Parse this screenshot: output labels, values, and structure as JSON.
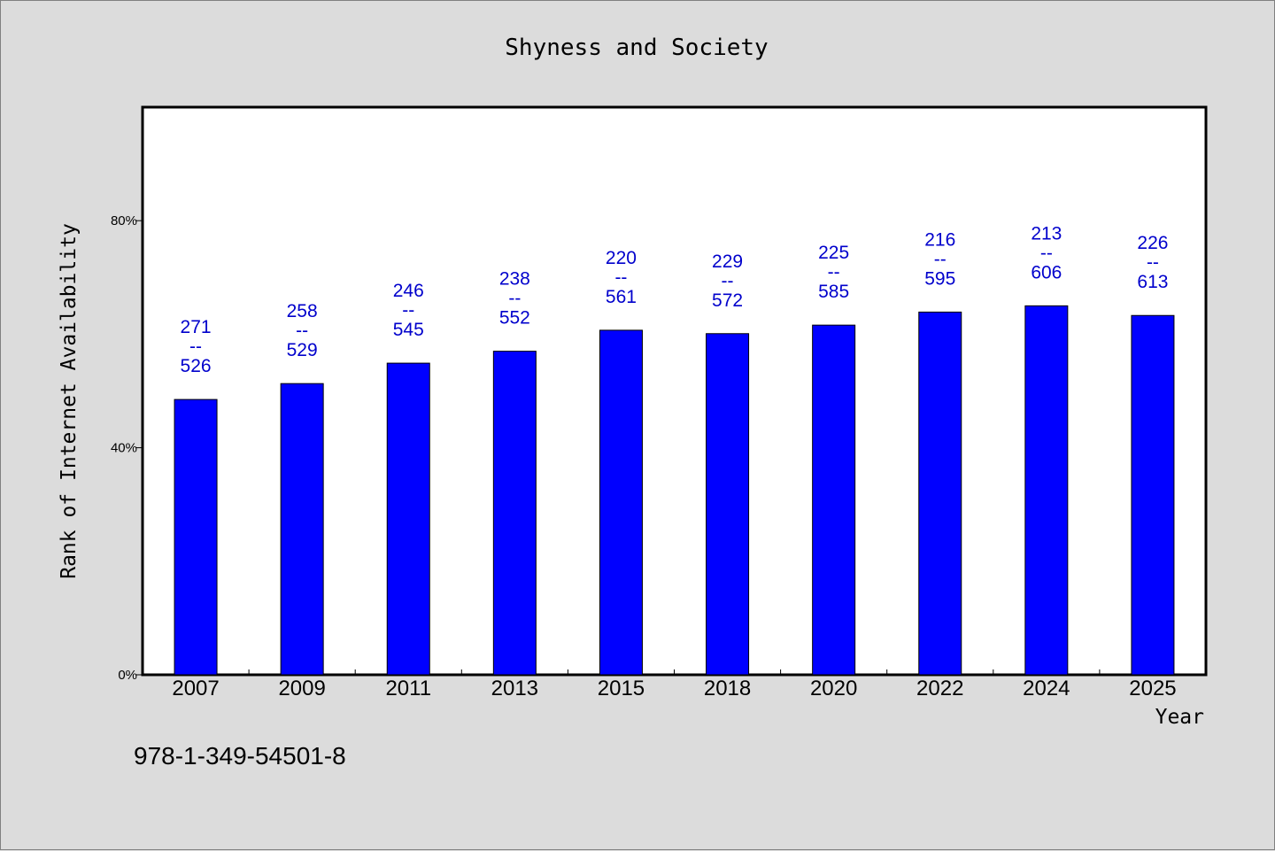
{
  "chart_data": {
    "type": "bar",
    "title": "Shyness and Society",
    "xlabel": "Year",
    "ylabel": "Rank of Internet Availability",
    "categories": [
      "2007",
      "2009",
      "2011",
      "2013",
      "2015",
      "2018",
      "2020",
      "2022",
      "2024",
      "2025"
    ],
    "values": [
      48.5,
      51.3,
      54.9,
      57.0,
      60.7,
      60.1,
      61.6,
      63.9,
      65.0,
      63.3
    ],
    "value_unit": "%",
    "ylim": [
      0,
      100
    ],
    "yticks": [
      {
        "value": 0,
        "label": "0%"
      },
      {
        "value": 40,
        "label": "40%"
      },
      {
        "value": 80,
        "label": "80%"
      }
    ],
    "data_labels": [
      {
        "top": "271",
        "sep": "--",
        "bottom": "526"
      },
      {
        "top": "258",
        "sep": "--",
        "bottom": "529"
      },
      {
        "top": "246",
        "sep": "--",
        "bottom": "545"
      },
      {
        "top": "238",
        "sep": "--",
        "bottom": "552"
      },
      {
        "top": "220",
        "sep": "--",
        "bottom": "561"
      },
      {
        "top": "229",
        "sep": "--",
        "bottom": "572"
      },
      {
        "top": "225",
        "sep": "--",
        "bottom": "585"
      },
      {
        "top": "216",
        "sep": "--",
        "bottom": "595"
      },
      {
        "top": "213",
        "sep": "--",
        "bottom": "606"
      },
      {
        "top": "226",
        "sep": "--",
        "bottom": "613"
      }
    ],
    "grid": false,
    "colors": {
      "bar": "#0000ff",
      "data_label": "#0000cc",
      "background": "#dcdcdc",
      "plot_background": "#ffffff"
    }
  },
  "footer": {
    "isbn": "978-1-349-54501-8"
  }
}
